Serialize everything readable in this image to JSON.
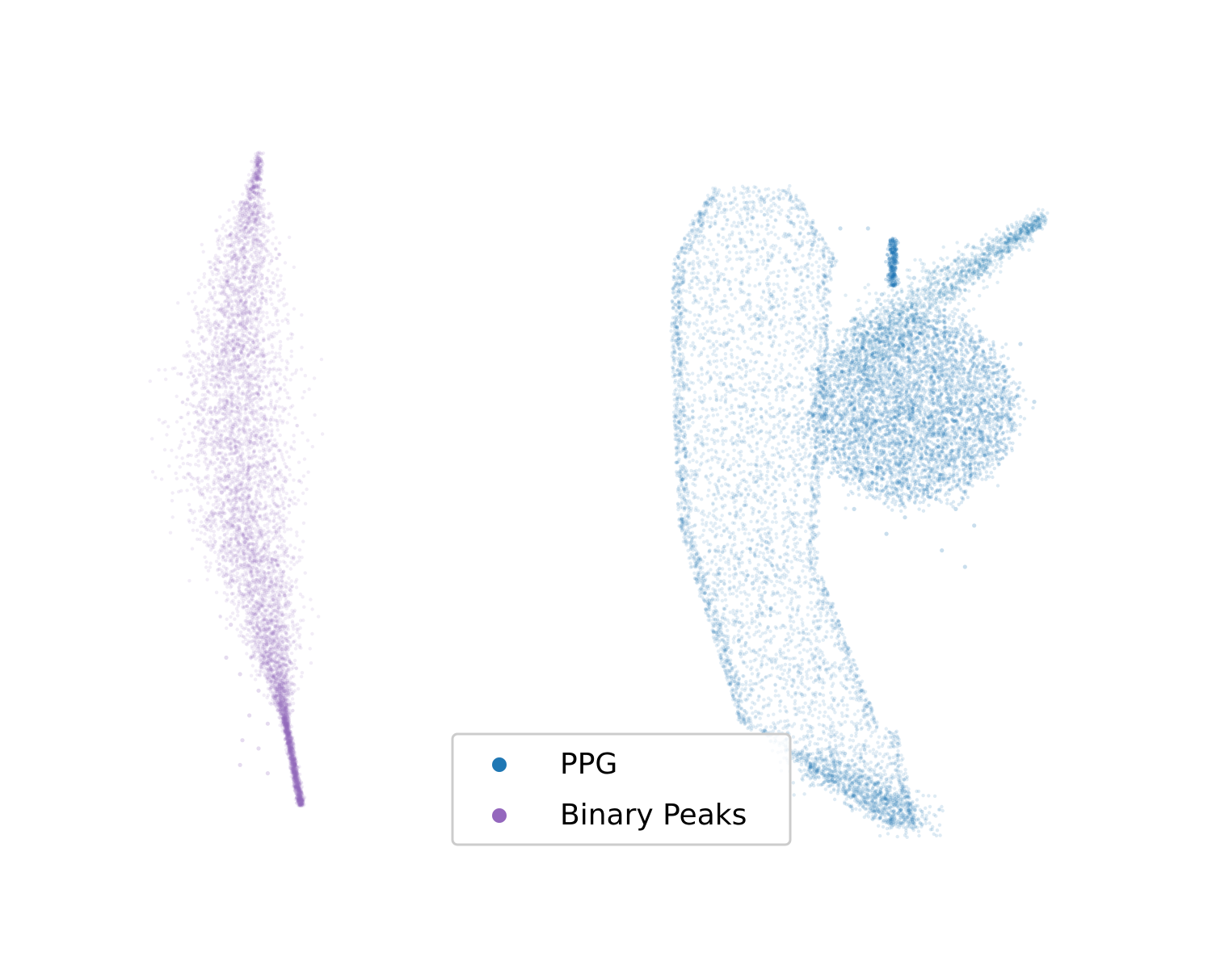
{
  "chart_data": {
    "type": "scatter",
    "title": "",
    "xlabel": "",
    "ylabel": "",
    "axes_visible": false,
    "grid": false,
    "legend_position": "lower-center",
    "series": [
      {
        "name": "PPG",
        "color": "#1f77b4",
        "marker": "circle",
        "opacity": 0.12,
        "points": [
          [
            8.2,
            3.2
          ],
          [
            8.6,
            3.5
          ],
          [
            8.5,
            3.9
          ],
          [
            8.8,
            4.4
          ],
          [
            9.2,
            4.9
          ],
          [
            9.5,
            5.1
          ],
          [
            9.0,
            4.0
          ],
          [
            9.4,
            4.6
          ],
          [
            8.9,
            3.6
          ],
          [
            9.8,
            5.3
          ],
          [
            10.1,
            5.5
          ],
          [
            10.6,
            5.7
          ],
          [
            11.0,
            5.9
          ],
          [
            11.4,
            5.8
          ],
          [
            11.9,
            5.9
          ],
          [
            12.4,
            5.7
          ],
          [
            12.8,
            5.5
          ],
          [
            13.2,
            5.2
          ],
          [
            10.4,
            5.2
          ],
          [
            11.2,
            5.3
          ],
          [
            11.7,
            5.4
          ],
          [
            12.3,
            5.1
          ],
          [
            12.9,
            4.8
          ],
          [
            13.3,
            4.6
          ],
          [
            11.8,
            4.7
          ],
          [
            12.6,
            4.3
          ],
          [
            13.1,
            4.1
          ],
          [
            10.7,
            4.8
          ],
          [
            11.4,
            4.5
          ],
          [
            13.8,
            5.6
          ],
          [
            14.6,
            6.1
          ],
          [
            11.0,
            6.3
          ],
          [
            11.9,
            6.6
          ],
          [
            12.7,
            6.6
          ],
          [
            13.6,
            6.4
          ],
          [
            14.3,
            6.8
          ],
          [
            8.3,
            6.6
          ],
          [
            8.6,
            7.1
          ],
          [
            8.9,
            7.4
          ],
          [
            9.3,
            7.8
          ],
          [
            9.8,
            8.0
          ],
          [
            10.4,
            8.2
          ],
          [
            11.0,
            8.2
          ],
          [
            11.6,
            8.0
          ],
          [
            12.0,
            7.6
          ],
          [
            12.3,
            6.9
          ],
          [
            9.5,
            7.1
          ],
          [
            9.9,
            6.5
          ],
          [
            10.3,
            6.0
          ],
          [
            10.7,
            7.0
          ],
          [
            11.3,
            7.4
          ],
          [
            8.5,
            6.0
          ],
          [
            9.3,
            6.3
          ],
          [
            12.8,
            6.1
          ]
        ]
      },
      {
        "name": "Binary Peaks",
        "color": "#9467bd",
        "marker": "circle",
        "opacity": 0.12,
        "points": [
          [
            -2.3,
            8.7
          ],
          [
            -2.35,
            8.2
          ],
          [
            -2.4,
            7.6
          ],
          [
            -2.5,
            7.0
          ],
          [
            -2.6,
            6.4
          ],
          [
            -2.75,
            5.8
          ],
          [
            -2.85,
            5.2
          ],
          [
            -2.95,
            4.6
          ],
          [
            -2.9,
            4.0
          ],
          [
            -2.8,
            3.4
          ],
          [
            -2.6,
            2.8
          ],
          [
            -2.4,
            2.3
          ],
          [
            -2.2,
            1.9
          ],
          [
            -2.0,
            1.6
          ],
          [
            -2.6,
            1.7
          ],
          [
            -2.7,
            5.0
          ],
          [
            -2.5,
            4.4
          ],
          [
            -3.0,
            5.0
          ],
          [
            -2.4,
            3.8
          ],
          [
            -2.9,
            3.0
          ],
          [
            -2.3,
            5.6
          ],
          [
            -2.65,
            6.8
          ],
          [
            -2.2,
            2.6
          ],
          [
            -2.55,
            2.0
          ],
          [
            -2.0,
            2.2
          ]
        ]
      }
    ],
    "extent": {
      "x": [
        -5,
        16
      ],
      "y": [
        0.5,
        9.5
      ]
    },
    "legend": {
      "entries": [
        {
          "label": "PPG",
          "color": "#1f77b4"
        },
        {
          "label": "Binary Peaks",
          "color": "#9467bd"
        }
      ]
    }
  }
}
